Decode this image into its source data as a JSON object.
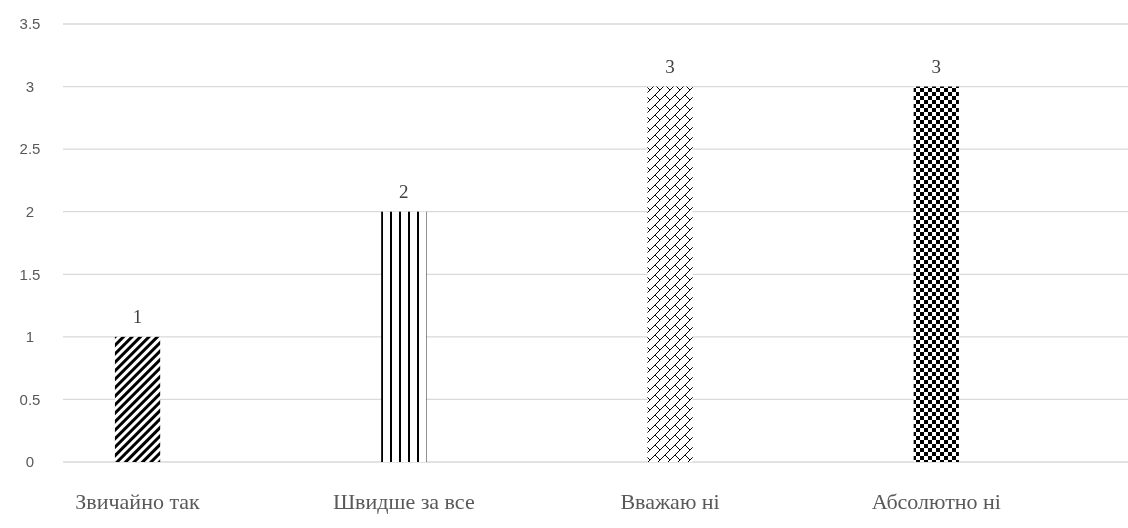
{
  "chart_data": {
    "type": "bar",
    "categories": [
      "Звичайно так",
      "Швидше за все",
      "Вважаю ні",
      "Абсолютно ні"
    ],
    "values": [
      1,
      2,
      3,
      3
    ],
    "colors": [
      "#000000",
      "#000000",
      "#000000",
      "#000000"
    ],
    "ylim": [
      0,
      3.5
    ],
    "yticks": [
      0,
      0.5,
      1,
      1.5,
      2,
      2.5,
      3,
      3.5
    ],
    "grid": "y",
    "data_labels": true
  }
}
